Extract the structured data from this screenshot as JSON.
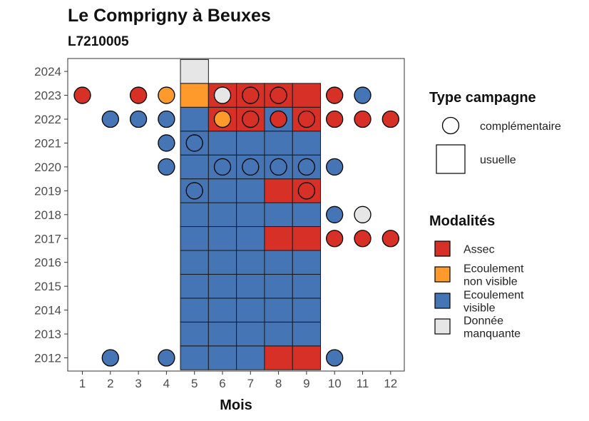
{
  "chart_data": {
    "type": "heatmap",
    "title": "Le Comprigny à Beuxes",
    "subtitle": "L7210005",
    "xlabel": "Mois",
    "ylabel": "",
    "x_ticks": [
      "1",
      "2",
      "3",
      "4",
      "5",
      "6",
      "7",
      "8",
      "9",
      "10",
      "11",
      "12"
    ],
    "y_ticks": [
      "2012",
      "2013",
      "2014",
      "2015",
      "2016",
      "2017",
      "2018",
      "2019",
      "2020",
      "2021",
      "2022",
      "2023",
      "2024"
    ],
    "xlim": [
      0.5,
      12.5
    ],
    "ylim": [
      2011.5,
      2024.5
    ],
    "grid": false,
    "legend_position": "right",
    "colors": {
      "Assec": "#d73027",
      "Ecoulement non visible": "#fd9a2b",
      "Ecoulement visible": "#4575b4",
      "Donnée manquante": "#e6e6e6"
    },
    "usuelle": [
      {
        "year": 2012,
        "month": 5,
        "modalite": "Ecoulement visible"
      },
      {
        "year": 2012,
        "month": 6,
        "modalite": "Ecoulement visible"
      },
      {
        "year": 2012,
        "month": 7,
        "modalite": "Ecoulement visible"
      },
      {
        "year": 2012,
        "month": 8,
        "modalite": "Assec"
      },
      {
        "year": 2012,
        "month": 9,
        "modalite": "Assec"
      },
      {
        "year": 2013,
        "month": 5,
        "modalite": "Ecoulement visible"
      },
      {
        "year": 2013,
        "month": 6,
        "modalite": "Ecoulement visible"
      },
      {
        "year": 2013,
        "month": 7,
        "modalite": "Ecoulement visible"
      },
      {
        "year": 2013,
        "month": 8,
        "modalite": "Ecoulement visible"
      },
      {
        "year": 2013,
        "month": 9,
        "modalite": "Ecoulement visible"
      },
      {
        "year": 2014,
        "month": 5,
        "modalite": "Ecoulement visible"
      },
      {
        "year": 2014,
        "month": 6,
        "modalite": "Ecoulement visible"
      },
      {
        "year": 2014,
        "month": 7,
        "modalite": "Ecoulement visible"
      },
      {
        "year": 2014,
        "month": 8,
        "modalite": "Ecoulement visible"
      },
      {
        "year": 2014,
        "month": 9,
        "modalite": "Ecoulement visible"
      },
      {
        "year": 2015,
        "month": 5,
        "modalite": "Ecoulement visible"
      },
      {
        "year": 2015,
        "month": 6,
        "modalite": "Ecoulement visible"
      },
      {
        "year": 2015,
        "month": 7,
        "modalite": "Ecoulement visible"
      },
      {
        "year": 2015,
        "month": 8,
        "modalite": "Ecoulement visible"
      },
      {
        "year": 2015,
        "month": 9,
        "modalite": "Ecoulement visible"
      },
      {
        "year": 2016,
        "month": 5,
        "modalite": "Ecoulement visible"
      },
      {
        "year": 2016,
        "month": 6,
        "modalite": "Ecoulement visible"
      },
      {
        "year": 2016,
        "month": 7,
        "modalite": "Ecoulement visible"
      },
      {
        "year": 2016,
        "month": 8,
        "modalite": "Ecoulement visible"
      },
      {
        "year": 2016,
        "month": 9,
        "modalite": "Ecoulement visible"
      },
      {
        "year": 2017,
        "month": 5,
        "modalite": "Ecoulement visible"
      },
      {
        "year": 2017,
        "month": 6,
        "modalite": "Ecoulement visible"
      },
      {
        "year": 2017,
        "month": 7,
        "modalite": "Ecoulement visible"
      },
      {
        "year": 2017,
        "month": 8,
        "modalite": "Assec"
      },
      {
        "year": 2017,
        "month": 9,
        "modalite": "Assec"
      },
      {
        "year": 2018,
        "month": 5,
        "modalite": "Ecoulement visible"
      },
      {
        "year": 2018,
        "month": 6,
        "modalite": "Ecoulement visible"
      },
      {
        "year": 2018,
        "month": 7,
        "modalite": "Ecoulement visible"
      },
      {
        "year": 2018,
        "month": 8,
        "modalite": "Ecoulement visible"
      },
      {
        "year": 2018,
        "month": 9,
        "modalite": "Ecoulement visible"
      },
      {
        "year": 2019,
        "month": 5,
        "modalite": "Ecoulement visible"
      },
      {
        "year": 2019,
        "month": 6,
        "modalite": "Ecoulement visible"
      },
      {
        "year": 2019,
        "month": 7,
        "modalite": "Ecoulement visible"
      },
      {
        "year": 2019,
        "month": 8,
        "modalite": "Assec"
      },
      {
        "year": 2019,
        "month": 9,
        "modalite": "Assec"
      },
      {
        "year": 2020,
        "month": 5,
        "modalite": "Ecoulement visible"
      },
      {
        "year": 2020,
        "month": 6,
        "modalite": "Ecoulement visible"
      },
      {
        "year": 2020,
        "month": 7,
        "modalite": "Ecoulement visible"
      },
      {
        "year": 2020,
        "month": 8,
        "modalite": "Ecoulement visible"
      },
      {
        "year": 2020,
        "month": 9,
        "modalite": "Ecoulement visible"
      },
      {
        "year": 2021,
        "month": 5,
        "modalite": "Ecoulement visible"
      },
      {
        "year": 2021,
        "month": 6,
        "modalite": "Ecoulement visible"
      },
      {
        "year": 2021,
        "month": 7,
        "modalite": "Ecoulement visible"
      },
      {
        "year": 2021,
        "month": 8,
        "modalite": "Ecoulement visible"
      },
      {
        "year": 2021,
        "month": 9,
        "modalite": "Ecoulement visible"
      },
      {
        "year": 2022,
        "month": 5,
        "modalite": "Ecoulement visible"
      },
      {
        "year": 2022,
        "month": 6,
        "modalite": "Assec"
      },
      {
        "year": 2022,
        "month": 7,
        "modalite": "Assec"
      },
      {
        "year": 2022,
        "month": 8,
        "modalite": "Ecoulement visible"
      },
      {
        "year": 2022,
        "month": 9,
        "modalite": "Assec"
      },
      {
        "year": 2023,
        "month": 5,
        "modalite": "Ecoulement non visible"
      },
      {
        "year": 2023,
        "month": 6,
        "modalite": "Assec"
      },
      {
        "year": 2023,
        "month": 7,
        "modalite": "Assec"
      },
      {
        "year": 2023,
        "month": 8,
        "modalite": "Assec"
      },
      {
        "year": 2023,
        "month": 9,
        "modalite": "Assec"
      },
      {
        "year": 2024,
        "month": 5,
        "modalite": "Donnée manquante"
      }
    ],
    "complementaire": [
      {
        "year": 2012,
        "month": 2,
        "modalite": "Ecoulement visible"
      },
      {
        "year": 2012,
        "month": 4,
        "modalite": "Ecoulement visible"
      },
      {
        "year": 2012,
        "month": 10,
        "modalite": "Ecoulement visible"
      },
      {
        "year": 2017,
        "month": 10,
        "modalite": "Assec"
      },
      {
        "year": 2017,
        "month": 11,
        "modalite": "Assec"
      },
      {
        "year": 2017,
        "month": 12,
        "modalite": "Assec"
      },
      {
        "year": 2018,
        "month": 10,
        "modalite": "Ecoulement visible"
      },
      {
        "year": 2018,
        "month": 11,
        "modalite": "Donnée manquante"
      },
      {
        "year": 2019,
        "month": 5,
        "modalite": "Ecoulement visible"
      },
      {
        "year": 2019,
        "month": 9,
        "modalite": "Assec"
      },
      {
        "year": 2020,
        "month": 4,
        "modalite": "Ecoulement visible"
      },
      {
        "year": 2020,
        "month": 6,
        "modalite": "Ecoulement visible"
      },
      {
        "year": 2020,
        "month": 7,
        "modalite": "Ecoulement visible"
      },
      {
        "year": 2020,
        "month": 8,
        "modalite": "Ecoulement visible"
      },
      {
        "year": 2020,
        "month": 9,
        "modalite": "Ecoulement visible"
      },
      {
        "year": 2020,
        "month": 10,
        "modalite": "Ecoulement visible"
      },
      {
        "year": 2021,
        "month": 4,
        "modalite": "Ecoulement visible"
      },
      {
        "year": 2021,
        "month": 5,
        "modalite": "Ecoulement visible"
      },
      {
        "year": 2022,
        "month": 2,
        "modalite": "Ecoulement visible"
      },
      {
        "year": 2022,
        "month": 3,
        "modalite": "Ecoulement visible"
      },
      {
        "year": 2022,
        "month": 4,
        "modalite": "Ecoulement visible"
      },
      {
        "year": 2022,
        "month": 6,
        "modalite": "Ecoulement non visible"
      },
      {
        "year": 2022,
        "month": 7,
        "modalite": "Assec"
      },
      {
        "year": 2022,
        "month": 8,
        "modalite": "Assec"
      },
      {
        "year": 2022,
        "month": 9,
        "modalite": "Assec"
      },
      {
        "year": 2022,
        "month": 10,
        "modalite": "Assec"
      },
      {
        "year": 2022,
        "month": 11,
        "modalite": "Assec"
      },
      {
        "year": 2022,
        "month": 12,
        "modalite": "Assec"
      },
      {
        "year": 2023,
        "month": 1,
        "modalite": "Assec"
      },
      {
        "year": 2023,
        "month": 3,
        "modalite": "Assec"
      },
      {
        "year": 2023,
        "month": 4,
        "modalite": "Ecoulement non visible"
      },
      {
        "year": 2023,
        "month": 6,
        "modalite": "Donnée manquante"
      },
      {
        "year": 2023,
        "month": 7,
        "modalite": "Assec"
      },
      {
        "year": 2023,
        "month": 8,
        "modalite": "Assec"
      },
      {
        "year": 2023,
        "month": 10,
        "modalite": "Assec"
      },
      {
        "year": 2023,
        "month": 11,
        "modalite": "Ecoulement visible"
      }
    ],
    "legend": {
      "type_title": "Type campagne",
      "type_items": [
        {
          "key": "complementaire",
          "label": "complémentaire",
          "shape": "circle"
        },
        {
          "key": "usuelle",
          "label": "usuelle",
          "shape": "square"
        }
      ],
      "modalites_title": "Modalités",
      "modalite_items": [
        {
          "key": "Assec",
          "lines": [
            "Assec"
          ]
        },
        {
          "key": "Ecoulement non visible",
          "lines": [
            "Ecoulement",
            "non visible"
          ]
        },
        {
          "key": "Ecoulement visible",
          "lines": [
            "Ecoulement",
            "visible"
          ]
        },
        {
          "key": "Donnée manquante",
          "lines": [
            "Donnée",
            "manquante"
          ]
        }
      ]
    }
  }
}
